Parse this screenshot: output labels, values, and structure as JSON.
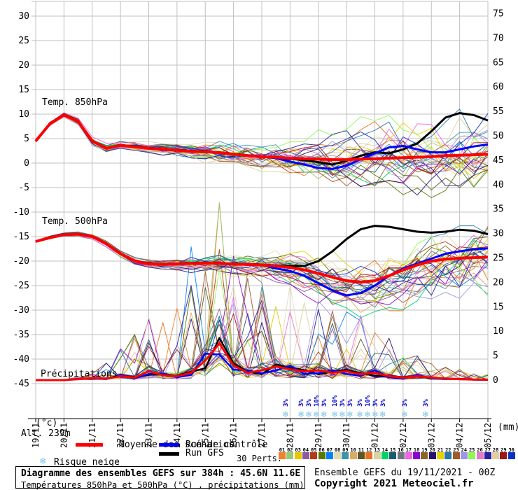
{
  "header_labels": {
    "temp850": "Temp. 850hPa",
    "temp500": "Temp. 500hPa",
    "precip": "Précipitations",
    "alt": "Alt. 239m",
    "left_unit": "(°c)",
    "right_unit": "(mm)"
  },
  "legend": {
    "mean": "Moyenne des scénarios",
    "control": "Run de contrôle",
    "gfs": "Run GFS",
    "perts_label": "30 Perts.",
    "snow_label": "Risque neige",
    "mean_color": "#ff0000",
    "control_color": "#0000ff",
    "gfs_color": "#000000",
    "snow_icon_color": "#7cc4ea",
    "pct_color": "#0000cc"
  },
  "footer": {
    "title": "Diagramme des ensembles GEFS sur 384h : 45.6N 11.6E",
    "subtitle": "Températures 850hPa et 500hPa (°C) , précipitations (mm)",
    "run_info": "Ensemble GEFS du 19/11/2021 - 00Z",
    "copyright": "Copyright 2021 Meteociel.fr"
  },
  "chart_data": {
    "type": "line",
    "title": "GEFS ensemble diagram 384h 45.6N 11.6E",
    "x_dates": [
      "19/11",
      "20/11",
      "21/11",
      "22/11",
      "23/11",
      "24/11",
      "25/11",
      "26/11",
      "27/11",
      "28/11",
      "29/11",
      "30/11",
      "01/12",
      "02/12",
      "03/12",
      "04/12",
      "05/12"
    ],
    "x_step_days": 0.5,
    "left_axis": {
      "unit": "°C",
      "ticks": [
        30,
        25,
        20,
        15,
        10,
        5,
        0,
        -5,
        -10,
        -15,
        -20,
        -25,
        -30,
        -35,
        -40,
        -45
      ]
    },
    "right_axis": {
      "unit": "mm",
      "ticks": [
        75,
        70,
        65,
        60,
        55,
        50,
        45,
        40,
        35,
        30,
        25,
        20,
        15,
        10,
        5,
        0
      ]
    },
    "grid": true,
    "temp850": {
      "mean": [
        4.5,
        8.0,
        9.8,
        8.5,
        4.5,
        3.0,
        3.6,
        3.3,
        3.0,
        2.8,
        2.6,
        2.4,
        2.3,
        2.1,
        1.8,
        1.5,
        1.3,
        1.2,
        1.0,
        0.9,
        0.8,
        0.7,
        0.7,
        0.8,
        0.9,
        1.0,
        1.1,
        1.2,
        1.3,
        1.5,
        1.6,
        1.7,
        1.8
      ],
      "control": [
        4.5,
        8.0,
        9.8,
        8.5,
        4.5,
        3.0,
        3.6,
        3.3,
        3.0,
        2.8,
        2.6,
        2.4,
        2.3,
        2.1,
        1.8,
        1.5,
        1.3,
        1.0,
        0.3,
        -0.3,
        -1.0,
        -1.2,
        -0.5,
        0.8,
        2.0,
        3.2,
        3.5,
        2.8,
        2.2,
        2.2,
        2.8,
        3.4,
        3.8
      ],
      "gfs": [
        4.5,
        8.1,
        9.9,
        8.6,
        4.6,
        3.1,
        3.7,
        3.4,
        3.1,
        2.9,
        2.7,
        2.5,
        2.4,
        2.2,
        1.9,
        1.6,
        1.4,
        1.1,
        0.9,
        0.6,
        0.2,
        -0.3,
        0.5,
        1.5,
        2.2,
        2.0,
        2.8,
        4.0,
        6.5,
        9.3,
        10.2,
        9.8,
        8.7
      ]
    },
    "temp500": {
      "mean": [
        -16.0,
        -15.2,
        -14.6,
        -14.5,
        -15.0,
        -16.5,
        -18.5,
        -20.0,
        -20.6,
        -20.7,
        -20.6,
        -20.5,
        -20.4,
        -20.5,
        -20.6,
        -20.7,
        -20.8,
        -21.0,
        -21.3,
        -21.8,
        -22.5,
        -23.3,
        -24.0,
        -24.3,
        -24.0,
        -23.0,
        -21.8,
        -20.8,
        -20.0,
        -19.6,
        -19.4,
        -19.3,
        -19.2
      ],
      "control": [
        -16.0,
        -15.2,
        -14.6,
        -14.5,
        -15.0,
        -16.5,
        -18.5,
        -20.0,
        -20.6,
        -20.7,
        -20.6,
        -20.5,
        -20.4,
        -20.5,
        -20.6,
        -20.7,
        -20.8,
        -21.5,
        -22.0,
        -23.0,
        -24.5,
        -26.0,
        -27.0,
        -26.5,
        -25.0,
        -23.0,
        -21.5,
        -20.5,
        -19.5,
        -18.5,
        -18.0,
        -17.6,
        -17.4
      ],
      "gfs": [
        -16.0,
        -15.1,
        -14.5,
        -14.4,
        -14.9,
        -16.4,
        -18.4,
        -19.9,
        -20.5,
        -20.6,
        -20.5,
        -20.4,
        -20.3,
        -20.4,
        -20.5,
        -20.6,
        -20.7,
        -20.9,
        -21.0,
        -21.0,
        -20.0,
        -18.0,
        -15.5,
        -13.5,
        -12.8,
        -13.0,
        -13.5,
        -14.0,
        -14.2,
        -14.0,
        -13.6,
        -13.8,
        -14.5
      ]
    },
    "precip": {
      "mean": [
        0,
        0,
        0,
        0.2,
        0.4,
        0.3,
        0.8,
        0.5,
        1.8,
        1.0,
        0.8,
        1.5,
        4.0,
        7.5,
        3.0,
        1.5,
        2.0,
        2.8,
        2.2,
        1.8,
        2.0,
        1.5,
        1.8,
        1.2,
        1.5,
        0.8,
        0.5,
        0.8,
        0.5,
        0.3,
        0.2,
        0.1,
        0.1
      ]
    },
    "ensemble": {
      "count": 30,
      "numbers": [
        "01",
        "02",
        "03",
        "04",
        "05",
        "06",
        "07",
        "08",
        "09",
        "10",
        "11",
        "12",
        "13",
        "14",
        "15",
        "16",
        "17",
        "18",
        "19",
        "20",
        "21",
        "22",
        "23",
        "24",
        "25",
        "26",
        "27",
        "28",
        "29",
        "30"
      ],
      "colors": [
        "#f08228",
        "#96c878",
        "#e6c800",
        "#8c5aa0",
        "#b43c14",
        "#5a7800",
        "#0082ff",
        "#e6dcb4",
        "#3c96aa",
        "#dcaa64",
        "#5f5520",
        "#e87020",
        "#dcd2a0",
        "#00d264",
        "#1e5a6e",
        "#6e7882",
        "#f064e6",
        "#8c00d2",
        "#8c6428",
        "#28106e",
        "#e6d200",
        "#2878a8",
        "#a05a28",
        "#9b96e6",
        "#8cfa50",
        "#e678c8",
        "#2820a0",
        "#e6cda0",
        "#a01414",
        "#0a32c8"
      ],
      "spread850": [
        0.4,
        0.5,
        0.7,
        0.8,
        1.0,
        1.2,
        1.5,
        2.0,
        2.6,
        3.2,
        3.8,
        4.3,
        4.8,
        5.3,
        5.8,
        6.3,
        6.8
      ],
      "spread500": [
        0.3,
        0.4,
        0.5,
        0.6,
        0.8,
        1.0,
        1.3,
        1.8,
        2.4,
        3.0,
        3.6,
        4.2,
        4.7,
        5.2,
        5.5,
        5.8,
        6.0
      ],
      "precip_spike_env": [
        0,
        0,
        1,
        6,
        14,
        20,
        33,
        26,
        18,
        18,
        16,
        14,
        10,
        6,
        4,
        2,
        2
      ]
    },
    "snow_markers": [
      {
        "day": 8.84,
        "pct": "3%"
      },
      {
        "day": 9.39,
        "pct": "3%"
      },
      {
        "day": 9.66,
        "pct": "3%"
      },
      {
        "day": 9.93,
        "pct": "10%"
      },
      {
        "day": 10.2,
        "pct": "3%"
      },
      {
        "day": 10.58,
        "pct": "10%"
      },
      {
        "day": 10.85,
        "pct": "3%"
      },
      {
        "day": 11.12,
        "pct": "3%"
      },
      {
        "day": 11.47,
        "pct": "3%"
      },
      {
        "day": 11.74,
        "pct": "10%"
      },
      {
        "day": 12.01,
        "pct": "3%"
      },
      {
        "day": 12.28,
        "pct": "3%"
      },
      {
        "day": 13.05,
        "pct": "3%"
      },
      {
        "day": 13.79,
        "pct": "3%"
      }
    ]
  }
}
